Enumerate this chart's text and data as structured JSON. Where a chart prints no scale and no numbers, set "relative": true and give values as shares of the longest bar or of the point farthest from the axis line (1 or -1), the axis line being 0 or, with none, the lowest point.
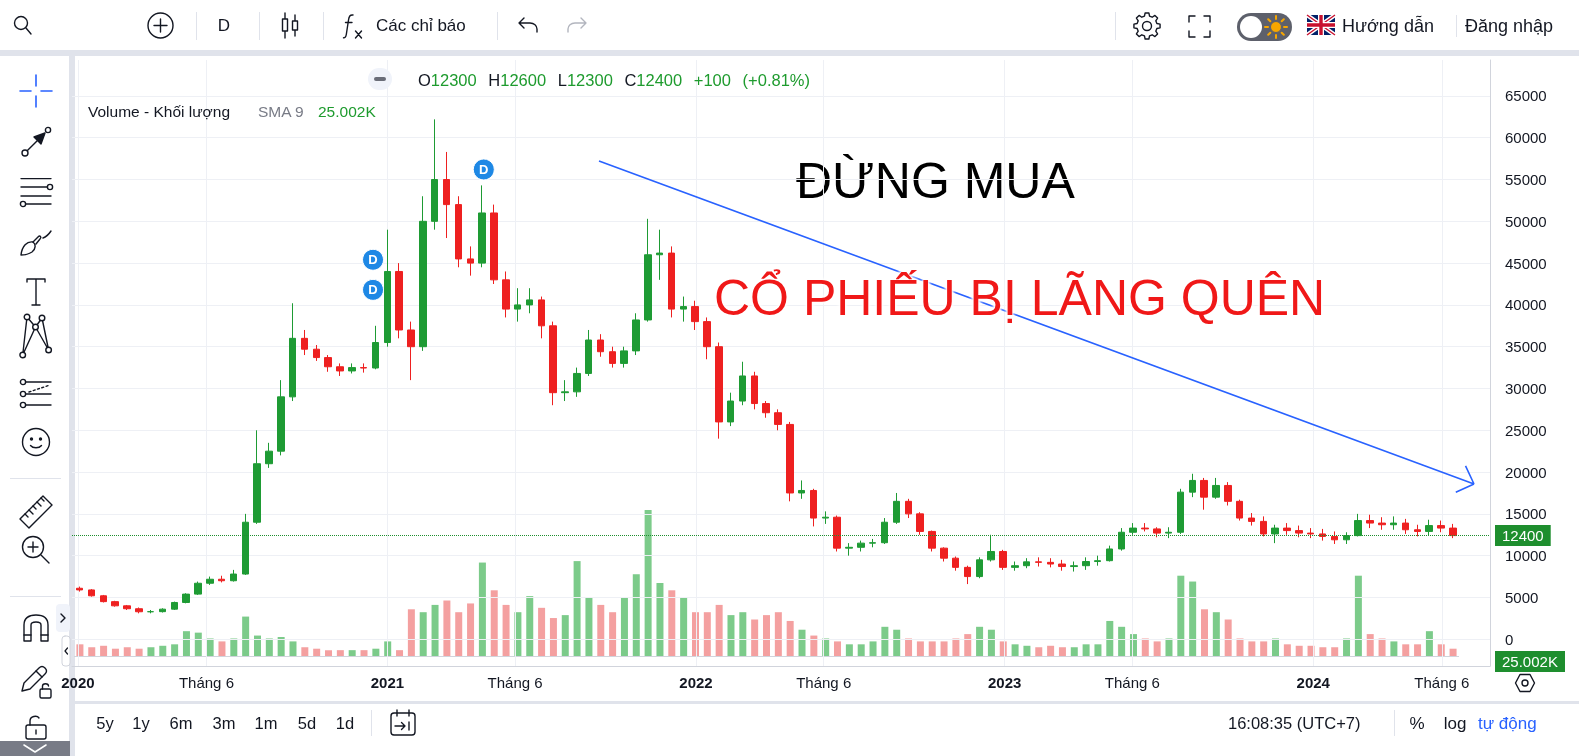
{
  "chart_data": [
    {
      "type": "candlestick",
      "x": [
        "2020-01-03",
        "2020-01-17",
        "2020-01-31",
        "2020-02-14",
        "2020-02-28",
        "2020-03-13",
        "2020-03-27",
        "2020-04-10",
        "2020-04-24",
        "2020-05-08",
        "2020-05-22",
        "2020-06-05",
        "2020-06-19",
        "2020-07-03",
        "2020-07-17",
        "2020-07-31",
        "2020-08-14",
        "2020-08-28",
        "2020-09-11",
        "2020-09-25",
        "2020-10-09",
        "2020-10-23",
        "2020-11-06",
        "2020-11-20",
        "2020-12-04",
        "2020-12-18",
        "2021-01-01",
        "2021-01-15",
        "2021-01-29",
        "2021-02-12",
        "2021-02-26",
        "2021-03-12",
        "2021-03-26",
        "2021-04-09",
        "2021-04-23",
        "2021-05-07",
        "2021-05-21",
        "2021-06-04",
        "2021-06-18",
        "2021-07-02",
        "2021-07-16",
        "2021-07-30",
        "2021-08-13",
        "2021-08-27",
        "2021-09-10",
        "2021-09-24",
        "2021-10-08",
        "2021-10-22",
        "2021-11-05",
        "2021-11-19",
        "2021-12-03",
        "2021-12-17",
        "2021-12-31",
        "2022-01-14",
        "2022-01-28",
        "2022-02-11",
        "2022-02-25",
        "2022-03-11",
        "2022-03-25",
        "2022-04-08",
        "2022-04-22",
        "2022-05-06",
        "2022-05-20",
        "2022-06-03",
        "2022-06-17",
        "2022-07-01",
        "2022-07-15",
        "2022-07-29",
        "2022-08-12",
        "2022-08-26",
        "2022-09-09",
        "2022-09-23",
        "2022-10-07",
        "2022-10-21",
        "2022-11-04",
        "2022-11-18",
        "2022-12-02",
        "2022-12-16",
        "2022-12-30",
        "2023-01-13",
        "2023-01-27",
        "2023-02-10",
        "2023-02-24",
        "2023-03-10",
        "2023-03-24",
        "2023-04-07",
        "2023-04-21",
        "2023-05-05",
        "2023-05-19",
        "2023-06-02",
        "2023-06-16",
        "2023-06-30",
        "2023-07-14",
        "2023-07-28",
        "2023-08-11",
        "2023-08-25",
        "2023-09-08",
        "2023-09-22",
        "2023-10-06",
        "2023-10-20",
        "2023-11-03",
        "2023-11-17",
        "2023-12-01",
        "2023-12-15",
        "2023-12-29",
        "2024-01-12",
        "2024-01-26",
        "2024-02-09",
        "2024-02-23",
        "2024-03-08",
        "2024-03-22",
        "2024-04-05",
        "2024-04-19",
        "2024-05-03",
        "2024-05-17",
        "2024-05-31",
        "2024-06-14"
      ],
      "ohlc": [
        [
          6100,
          6300,
          5700,
          5900
        ],
        [
          5900,
          6000,
          5100,
          5200
        ],
        [
          5200,
          5300,
          4400,
          4500
        ],
        [
          4500,
          4600,
          3900,
          4000
        ],
        [
          4000,
          4100,
          3500,
          3650
        ],
        [
          3650,
          3800,
          3100,
          3290
        ],
        [
          3290,
          3500,
          3100,
          3300
        ],
        [
          3300,
          3700,
          3200,
          3600
        ],
        [
          3600,
          4500,
          3500,
          4400
        ],
        [
          4400,
          5500,
          4300,
          5400
        ],
        [
          5400,
          6900,
          5300,
          6700
        ],
        [
          6700,
          7500,
          6500,
          7180
        ],
        [
          7180,
          7600,
          6800,
          7000
        ],
        [
          7000,
          8300,
          6900,
          7800
        ],
        [
          7800,
          15000,
          7700,
          14000
        ],
        [
          14000,
          25000,
          13800,
          21000
        ],
        [
          21000,
          23500,
          20500,
          22500
        ],
        [
          22500,
          31000,
          22000,
          29000
        ],
        [
          29000,
          40200,
          28500,
          36000
        ],
        [
          36000,
          37000,
          34000,
          34700
        ],
        [
          34700,
          35200,
          33300,
          33700
        ],
        [
          33700,
          34000,
          32000,
          32600
        ],
        [
          32600,
          33000,
          31500,
          32100
        ],
        [
          32100,
          33000,
          31800,
          32500
        ],
        [
          32500,
          33000,
          31900,
          32450
        ],
        [
          32450,
          37500,
          32300,
          35500
        ],
        [
          35500,
          49000,
          35000,
          44000
        ],
        [
          44000,
          45000,
          36000,
          37000
        ],
        [
          37000,
          38000,
          31000,
          35000
        ],
        [
          35000,
          53000,
          34500,
          50000
        ],
        [
          50000,
          62200,
          49000,
          55000
        ],
        [
          55000,
          58300,
          48000,
          52000
        ],
        [
          52000,
          53000,
          44500,
          45500
        ],
        [
          45500,
          47000,
          43500,
          45000
        ],
        [
          45000,
          54300,
          44500,
          51000
        ],
        [
          51000,
          52000,
          42500,
          43000
        ],
        [
          43000,
          44000,
          38500,
          39500
        ],
        [
          39500,
          42000,
          38000,
          40000
        ],
        [
          40000,
          42000,
          39000,
          40600
        ],
        [
          40600,
          41000,
          36000,
          37500
        ],
        [
          37500,
          38000,
          28000,
          29500
        ],
        [
          29500,
          31000,
          28500,
          29600
        ],
        [
          29600,
          32500,
          29000,
          31800
        ],
        [
          31800,
          37000,
          31500,
          35800
        ],
        [
          35800,
          36500,
          33800,
          34400
        ],
        [
          34400,
          35000,
          32500,
          33000
        ],
        [
          33000,
          35000,
          32500,
          34500
        ],
        [
          34500,
          39000,
          34000,
          38200
        ],
        [
          38200,
          50300,
          38000,
          46000
        ],
        [
          46000,
          49000,
          43000,
          46200
        ],
        [
          46200,
          47000,
          38500,
          39500
        ],
        [
          39500,
          41000,
          38000,
          39800
        ],
        [
          39800,
          40500,
          37000,
          38000
        ],
        [
          38000,
          38500,
          33500,
          35000
        ],
        [
          35000,
          35500,
          24000,
          26000
        ],
        [
          26000,
          29500,
          25500,
          28500
        ],
        [
          28500,
          33200,
          28000,
          31500
        ],
        [
          31500,
          32000,
          27500,
          28200
        ],
        [
          28200,
          28500,
          26500,
          27100
        ],
        [
          27100,
          27500,
          25000,
          25700
        ],
        [
          25700,
          26000,
          16500,
          17500
        ],
        [
          17500,
          19000,
          16800,
          17800
        ],
        [
          17800,
          18000,
          13500,
          14500
        ],
        [
          14500,
          15300,
          13800,
          14600
        ],
        [
          14600,
          14800,
          10500,
          10900
        ],
        [
          10900,
          11500,
          10000,
          11000
        ],
        [
          11000,
          11800,
          10500,
          11500
        ],
        [
          11500,
          12000,
          11000,
          11550
        ],
        [
          11550,
          14500,
          11400,
          14000
        ],
        [
          14000,
          17500,
          13800,
          16500
        ],
        [
          16500,
          16800,
          14500,
          15000
        ],
        [
          15000,
          15200,
          12500,
          12900
        ],
        [
          12900,
          13000,
          10500,
          10900
        ],
        [
          10900,
          11000,
          9300,
          9700
        ],
        [
          9700,
          9900,
          8200,
          8600
        ],
        [
          8600,
          8800,
          6600,
          7500
        ],
        [
          7500,
          9800,
          7300,
          9500
        ],
        [
          9500,
          12500,
          9300,
          10500
        ],
        [
          10500,
          10700,
          8300,
          8600
        ],
        [
          8600,
          9300,
          8200,
          8800
        ],
        [
          8800,
          9700,
          8500,
          9260
        ],
        [
          9260,
          9800,
          8700,
          9200
        ],
        [
          9200,
          9700,
          8600,
          9000
        ],
        [
          9000,
          9500,
          8200,
          8700
        ],
        [
          8700,
          9300,
          8100,
          8800
        ],
        [
          8800,
          9800,
          8300,
          9300
        ],
        [
          9300,
          10000,
          8800,
          9400
        ],
        [
          9400,
          11200,
          9300,
          10800
        ],
        [
          10800,
          13300,
          10600,
          12800
        ],
        [
          12800,
          13900,
          12500,
          13300
        ],
        [
          13300,
          13900,
          12900,
          13200
        ],
        [
          13200,
          13400,
          12200,
          12700
        ],
        [
          12700,
          13400,
          12100,
          12800
        ],
        [
          12800,
          18000,
          12600,
          17600
        ],
        [
          17600,
          19800,
          17000,
          19000
        ],
        [
          19000,
          19300,
          15500,
          17000
        ],
        [
          17000,
          19300,
          16800,
          18400
        ],
        [
          18400,
          18800,
          16000,
          16500
        ],
        [
          16500,
          16700,
          14200,
          14500
        ],
        [
          14500,
          15100,
          13600,
          14100
        ],
        [
          14100,
          14700,
          12300,
          12600
        ],
        [
          12600,
          13700,
          11500,
          13300
        ],
        [
          13300,
          13900,
          12500,
          13000
        ],
        [
          13000,
          13600,
          12200,
          12700
        ],
        [
          12700,
          13300,
          12100,
          12600
        ],
        [
          12600,
          13200,
          11800,
          12300
        ],
        [
          12300,
          12900,
          11400,
          11900
        ],
        [
          11900,
          12800,
          11400,
          12400
        ],
        [
          12400,
          15000,
          12300,
          14200
        ],
        [
          14200,
          14900,
          13300,
          13900
        ],
        [
          13900,
          14600,
          13100,
          13700
        ],
        [
          13700,
          14700,
          13100,
          13900
        ],
        [
          13900,
          14400,
          12600,
          13100
        ],
        [
          13100,
          13700,
          12300,
          12900
        ],
        [
          12900,
          14300,
          12400,
          13600
        ],
        [
          13600,
          14200,
          12800,
          13300
        ],
        [
          13300,
          13800,
          12100,
          12400
        ]
      ],
      "colors": [
        "#ee2020",
        "#ee2020",
        "#ee2020",
        "#ee2020",
        "#ee2020",
        "#ee2020",
        "#1e9b34",
        "#1e9b34",
        "#1e9b34",
        "#1e9b34",
        "#1e9b34",
        "#1e9b34",
        "#ee2020",
        "#1e9b34",
        "#1e9b34",
        "#1e9b34",
        "#1e9b34",
        "#1e9b34",
        "#1e9b34",
        "#ee2020",
        "#ee2020",
        "#ee2020",
        "#ee2020",
        "#1e9b34",
        "#ee2020",
        "#1e9b34",
        "#1e9b34",
        "#ee2020",
        "#ee2020",
        "#1e9b34",
        "#1e9b34",
        "#ee2020",
        "#ee2020",
        "#ee2020",
        "#1e9b34",
        "#ee2020",
        "#ee2020",
        "#1e9b34",
        "#1e9b34",
        "#ee2020",
        "#ee2020",
        "#1e9b34",
        "#1e9b34",
        "#1e9b34",
        "#ee2020",
        "#ee2020",
        "#1e9b34",
        "#1e9b34",
        "#1e9b34",
        "#1e9b34",
        "#ee2020",
        "#1e9b34",
        "#ee2020",
        "#ee2020",
        "#ee2020",
        "#1e9b34",
        "#1e9b34",
        "#ee2020",
        "#ee2020",
        "#ee2020",
        "#ee2020",
        "#1e9b34",
        "#ee2020",
        "#1e9b34",
        "#ee2020",
        "#1e9b34",
        "#1e9b34",
        "#1e9b34",
        "#1e9b34",
        "#1e9b34",
        "#ee2020",
        "#ee2020",
        "#ee2020",
        "#ee2020",
        "#ee2020",
        "#ee2020",
        "#1e9b34",
        "#1e9b34",
        "#ee2020",
        "#1e9b34",
        "#1e9b34",
        "#ee2020",
        "#ee2020",
        "#ee2020",
        "#1e9b34",
        "#1e9b34",
        "#1e9b34",
        "#1e9b34",
        "#1e9b34",
        "#1e9b34",
        "#ee2020",
        "#ee2020",
        "#1e9b34",
        "#1e9b34",
        "#1e9b34",
        "#ee2020",
        "#1e9b34",
        "#ee2020",
        "#ee2020",
        "#ee2020",
        "#ee2020",
        "#1e9b34",
        "#ee2020",
        "#ee2020",
        "#ee2020",
        "#ee2020",
        "#ee2020",
        "#1e9b34",
        "#1e9b34",
        "#ee2020",
        "#ee2020",
        "#1e9b34",
        "#ee2020",
        "#ee2020",
        "#1e9b34",
        "#ee2020",
        "#ee2020"
      ],
      "xlim": [
        "2019-12-25",
        "2024-07-28"
      ],
      "xticks": [
        {
          "value": "2020-01-01",
          "label": "2020"
        },
        {
          "value": "2020-06-01",
          "label": "Tháng 6"
        },
        {
          "value": "2021-01-01",
          "label": "2021"
        },
        {
          "value": "2021-06-01",
          "label": "Tháng 6"
        },
        {
          "value": "2022-01-01",
          "label": "2022"
        },
        {
          "value": "2022-06-01",
          "label": "Tháng 6"
        },
        {
          "value": "2023-01-01",
          "label": "2023"
        },
        {
          "value": "2023-06-01",
          "label": "Tháng 6"
        },
        {
          "value": "2024-01-01",
          "label": "2024"
        },
        {
          "value": "2024-06-01",
          "label": "Tháng 6"
        }
      ],
      "ylim": [
        -3200,
        69300
      ],
      "yticks": [
        0,
        5000,
        10000,
        15000,
        20000,
        25000,
        30000,
        35000,
        40000,
        45000,
        50000,
        55000,
        60000,
        65000
      ],
      "grid": true,
      "ref_lines": [
        {
          "axis": "y",
          "value": 12400,
          "label": "12400",
          "color": "#1e8e2e",
          "line_style": "dotted"
        }
      ],
      "annotations": [
        {
          "text": "D",
          "x": "2020-12-15",
          "y": 45400
        },
        {
          "text": "D",
          "x": "2020-12-15",
          "y": 41800
        },
        {
          "text": "D",
          "x": "2021-04-25",
          "y": 56200
        },
        "O12300 H12600 L12300 C12400 +100 (+0.81%)",
        "ĐỪNG MUA",
        "CỔ PHIẾU BỊ LÃNG QUÊN",
        "D",
        "Các chỉ báo",
        "Hướng dẫn",
        "Đăng nhập",
        "5y",
        "1y",
        "6m",
        "3m",
        "1m",
        "5d",
        "1d",
        "16:08:35 (UTC+7)",
        "%",
        "log",
        "tự động"
      ]
    },
    {
      "type": "bar",
      "relative": true,
      "categories": [
        null,
        null,
        null,
        null,
        null,
        null,
        null,
        null,
        null,
        null,
        null,
        null,
        null,
        null,
        null,
        null,
        null,
        null,
        null,
        null,
        null,
        null,
        null,
        null,
        null,
        null,
        null,
        null,
        null,
        null,
        null,
        null,
        null,
        null,
        null,
        null,
        null,
        null,
        null,
        null,
        null,
        null,
        null,
        null,
        null,
        null,
        null,
        null,
        null,
        null,
        null,
        null,
        null,
        null,
        null,
        null,
        null,
        null,
        null,
        null,
        null,
        null,
        null,
        null,
        null,
        null,
        null,
        null,
        null,
        null,
        null,
        null,
        null,
        null,
        null,
        null,
        null,
        null,
        null,
        null,
        null,
        null,
        null,
        null,
        null,
        null,
        null,
        null,
        null,
        null,
        null,
        null,
        null,
        null,
        null,
        null,
        null,
        null,
        null,
        null,
        null,
        null,
        null,
        null,
        null,
        null,
        null,
        null,
        null,
        null,
        null,
        null,
        null,
        null,
        null,
        null,
        null
      ],
      "values": [
        0.08,
        0.06,
        0.07,
        0.05,
        0.06,
        0.05,
        0.06,
        0.07,
        0.08,
        0.17,
        0.16,
        0.12,
        0.1,
        0.12,
        0.27,
        0.14,
        0.12,
        0.13,
        0.1,
        0.06,
        0.05,
        0.04,
        0.04,
        0.04,
        0.04,
        0.05,
        0.1,
        0.04,
        0.32,
        0.3,
        0.35,
        0.38,
        0.3,
        0.36,
        0.64,
        0.45,
        0.35,
        0.3,
        0.41,
        0.33,
        0.26,
        0.28,
        0.65,
        0.4,
        0.35,
        0.3,
        0.4,
        0.56,
        1,
        0.5,
        0.45,
        0.4,
        0.3,
        0.3,
        0.35,
        0.28,
        0.3,
        0.25,
        0.28,
        0.3,
        0.24,
        0.18,
        0.14,
        0.12,
        0.1,
        0.08,
        0.08,
        0.1,
        0.2,
        0.18,
        0.12,
        0.1,
        0.1,
        0.1,
        0.12,
        0.15,
        0.2,
        0.18,
        0.1,
        0.08,
        0.07,
        0.06,
        0.07,
        0.06,
        0.06,
        0.08,
        0.08,
        0.24,
        0.2,
        0.15,
        0.12,
        0.1,
        0.12,
        0.55,
        0.51,
        0.32,
        0.3,
        0.25,
        0.12,
        0.1,
        0.1,
        0.12,
        0.08,
        0.07,
        0.07,
        0.06,
        0.06,
        0.12,
        0.55,
        0.15,
        0.12,
        0.1,
        0.08,
        0.08,
        0.17,
        0.08,
        0.05
      ],
      "colors": [
        "#f4a0a0",
        "#f4a0a0",
        "#f4a0a0",
        "#f4a0a0",
        "#f4a0a0",
        "#f4a0a0",
        "#7ccb8a",
        "#7ccb8a",
        "#7ccb8a",
        "#7ccb8a",
        "#7ccb8a",
        "#7ccb8a",
        "#f4a0a0",
        "#7ccb8a",
        "#7ccb8a",
        "#7ccb8a",
        "#7ccb8a",
        "#7ccb8a",
        "#7ccb8a",
        "#f4a0a0",
        "#f4a0a0",
        "#f4a0a0",
        "#f4a0a0",
        "#7ccb8a",
        "#f4a0a0",
        "#7ccb8a",
        "#7ccb8a",
        "#f4a0a0",
        "#f4a0a0",
        "#7ccb8a",
        "#7ccb8a",
        "#f4a0a0",
        "#f4a0a0",
        "#f4a0a0",
        "#7ccb8a",
        "#f4a0a0",
        "#f4a0a0",
        "#7ccb8a",
        "#7ccb8a",
        "#f4a0a0",
        "#f4a0a0",
        "#7ccb8a",
        "#7ccb8a",
        "#7ccb8a",
        "#f4a0a0",
        "#f4a0a0",
        "#7ccb8a",
        "#7ccb8a",
        "#7ccb8a",
        "#7ccb8a",
        "#f4a0a0",
        "#7ccb8a",
        "#f4a0a0",
        "#f4a0a0",
        "#f4a0a0",
        "#7ccb8a",
        "#7ccb8a",
        "#f4a0a0",
        "#f4a0a0",
        "#f4a0a0",
        "#f4a0a0",
        "#7ccb8a",
        "#f4a0a0",
        "#7ccb8a",
        "#f4a0a0",
        "#7ccb8a",
        "#7ccb8a",
        "#7ccb8a",
        "#7ccb8a",
        "#7ccb8a",
        "#f4a0a0",
        "#f4a0a0",
        "#f4a0a0",
        "#f4a0a0",
        "#f4a0a0",
        "#f4a0a0",
        "#7ccb8a",
        "#7ccb8a",
        "#f4a0a0",
        "#7ccb8a",
        "#7ccb8a",
        "#f4a0a0",
        "#f4a0a0",
        "#f4a0a0",
        "#7ccb8a",
        "#7ccb8a",
        "#7ccb8a",
        "#7ccb8a",
        "#7ccb8a",
        "#7ccb8a",
        "#f4a0a0",
        "#f4a0a0",
        "#7ccb8a",
        "#7ccb8a",
        "#7ccb8a",
        "#f4a0a0",
        "#7ccb8a",
        "#f4a0a0",
        "#f4a0a0",
        "#f4a0a0",
        "#f4a0a0",
        "#7ccb8a",
        "#f4a0a0",
        "#f4a0a0",
        "#f4a0a0",
        "#f4a0a0",
        "#f4a0a0",
        "#7ccb8a",
        "#7ccb8a",
        "#f4a0a0",
        "#f4a0a0",
        "#7ccb8a",
        "#f4a0a0",
        "#f4a0a0",
        "#7ccb8a",
        "#f4a0a0",
        "#f4a0a0"
      ],
      "annotations": [
        "Volume - Khối lượng",
        "SMA 9",
        "25.002K",
        "25.002K"
      ]
    }
  ]
}
